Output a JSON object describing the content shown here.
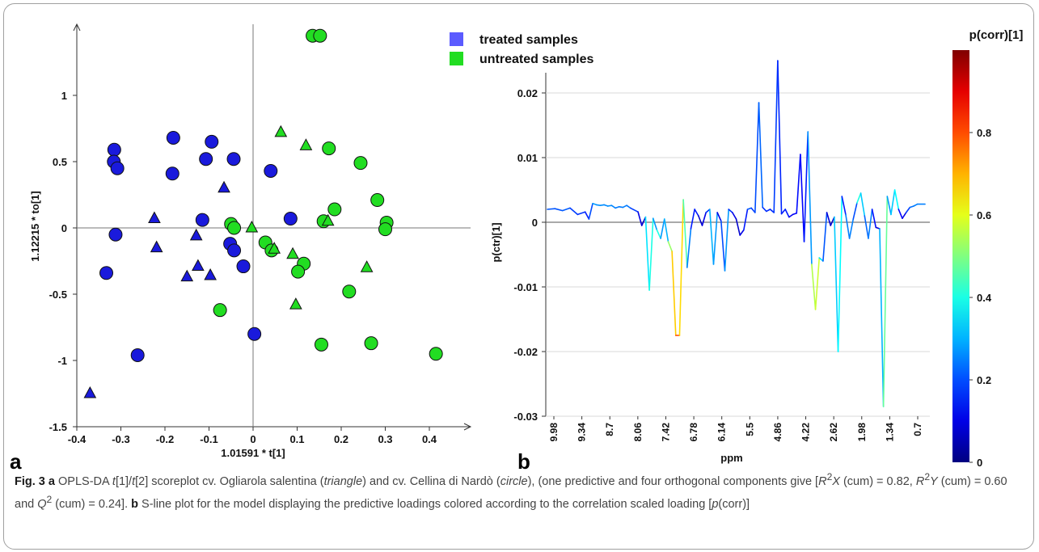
{
  "figure": {
    "panel_a_letter": "a",
    "panel_b_letter": "b",
    "caption": {
      "fig_label": "Fig. 3",
      "a_letter": "a",
      "t1": "OPLS-DA",
      "t2": "t",
      "t3": "[1]/",
      "t4": "t",
      "t5": "[2] scoreplot cv. Ogliarola salentina (",
      "t6": "triangle",
      "t7": ") and cv. Cellina di Nardò (",
      "t8": "circle",
      "t9": "), (one predictive and four orthogonal components give [",
      "t10": "R",
      "t11": "2",
      "t12": "X",
      "t13": " (cum) = 0.82, ",
      "t14": "R",
      "t15": "2",
      "t16": "Y",
      "t17": " (cum) = 0.60 and ",
      "t18": "Q",
      "t19": "2",
      "t20": " (cum) = 0.24].",
      "b_letter": "b",
      "t21": " S-line plot for the model displaying the predictive loadings colored according to the correlation scaled loading [",
      "t22": "p",
      "t23": "(corr)]"
    }
  },
  "chart_data": [
    {
      "type": "scatter",
      "xlabel": "1.01591 * t[1]",
      "ylabel": "1.12215 * to[1]",
      "xlim": [
        -0.4,
        0.44
      ],
      "ylim": [
        -1.5,
        1.45
      ],
      "xticks": [
        "-0.4",
        "-0.3",
        "-0.2",
        "-0.1",
        "0",
        "0.1",
        "0.2",
        "0.3",
        "0.4"
      ],
      "yticks": [
        "-1.5",
        "-1",
        "-0.5",
        "0",
        "0.5",
        "1"
      ],
      "xtick_values": [
        -0.4,
        -0.3,
        -0.2,
        -0.1,
        0,
        0.1,
        0.2,
        0.3,
        0.4
      ],
      "ytick_values": [
        -1.5,
        -1,
        -0.5,
        0,
        0.5,
        1
      ],
      "legend": [
        {
          "label": "treated samples",
          "color": "#5b5bff"
        },
        {
          "label": "untreated samples",
          "color": "#22dd22"
        }
      ],
      "series": [
        {
          "name": "treated samples",
          "color": "#1a1adc",
          "points": {
            "circle": [
              [
                -0.315,
                0.59
              ],
              [
                -0.316,
                0.5
              ],
              [
                -0.308,
                0.45
              ],
              [
                -0.312,
                -0.05
              ],
              [
                -0.333,
                -0.34
              ],
              [
                -0.181,
                0.68
              ],
              [
                -0.183,
                0.41
              ],
              [
                -0.107,
                0.52
              ],
              [
                -0.094,
                0.65
              ],
              [
                -0.044,
                0.52
              ],
              [
                -0.115,
                0.06
              ],
              [
                -0.052,
                -0.12
              ],
              [
                -0.043,
                -0.17
              ],
              [
                -0.022,
                -0.29
              ],
              [
                0.04,
                0.43
              ],
              [
                0.085,
                0.07
              ],
              [
                0.003,
                -0.8
              ],
              [
                -0.262,
                -0.96
              ]
            ],
            "triangle": [
              [
                -0.224,
                0.07
              ],
              [
                -0.219,
                -0.15
              ],
              [
                -0.129,
                -0.06
              ],
              [
                -0.125,
                -0.29
              ],
              [
                -0.15,
                -0.37
              ],
              [
                -0.097,
                -0.36
              ],
              [
                -0.066,
                0.3
              ],
              [
                -0.37,
                -1.25
              ]
            ]
          }
        },
        {
          "name": "untreated samples",
          "color": "#22dd22",
          "points": {
            "circle": [
              [
                0.135,
                1.45
              ],
              [
                0.152,
                1.45
              ],
              [
                0.172,
                0.6
              ],
              [
                0.244,
                0.49
              ],
              [
                0.282,
                0.21
              ],
              [
                0.185,
                0.14
              ],
              [
                0.303,
                0.04
              ],
              [
                0.3,
                -0.01
              ],
              [
                0.16,
                0.05
              ],
              [
                -0.05,
                0.03
              ],
              [
                -0.043,
                0.0
              ],
              [
                0.028,
                -0.11
              ],
              [
                0.042,
                -0.17
              ],
              [
                0.115,
                -0.27
              ],
              [
                0.102,
                -0.33
              ],
              [
                0.218,
                -0.48
              ],
              [
                -0.075,
                -0.62
              ],
              [
                0.155,
                -0.88
              ],
              [
                0.268,
                -0.87
              ],
              [
                0.415,
                -0.95
              ]
            ],
            "triangle": [
              [
                0.063,
                0.72
              ],
              [
                0.12,
                0.62
              ],
              [
                0.17,
                0.05
              ],
              [
                -0.003,
                0.0
              ],
              [
                0.048,
                -0.16
              ],
              [
                0.09,
                -0.2
              ],
              [
                0.258,
                -0.3
              ],
              [
                0.097,
                -0.58
              ]
            ]
          }
        }
      ]
    },
    {
      "type": "line",
      "ylabel": "p(ctr)[1]",
      "xlabel": "ppm",
      "xticks": [
        "9.98",
        "9.34",
        "8.7",
        "8.06",
        "7.42",
        "6.78",
        "6.14",
        "5.5",
        "4.86",
        "4.22",
        "2.62",
        "1.98",
        "1.34",
        "0.7"
      ],
      "yticks": [
        "0.02",
        "0.01",
        "0",
        "-0.01",
        "-0.02",
        "-0.03"
      ],
      "ytick_values": [
        0.02,
        0.01,
        0,
        -0.01,
        -0.02,
        -0.03
      ],
      "ylim": [
        -0.03,
        0.023
      ],
      "x_index_range": [
        0,
        100
      ],
      "x": [
        0,
        2,
        4,
        6,
        8,
        10,
        11,
        12,
        13,
        14,
        15,
        16,
        17,
        18,
        19,
        20,
        21,
        22,
        24,
        25,
        26,
        27,
        28,
        29,
        30,
        31,
        32,
        33,
        34,
        35,
        36,
        37,
        38,
        39,
        40,
        41,
        42,
        43,
        44,
        45,
        46,
        47,
        48,
        49,
        50,
        51,
        52,
        53,
        54,
        55,
        56,
        57,
        58,
        59,
        60,
        61,
        62,
        63,
        64,
        65,
        66,
        67,
        68,
        69,
        70,
        71,
        72,
        73,
        74,
        75,
        76,
        77,
        78,
        79,
        80,
        81,
        82,
        83,
        84,
        85,
        86,
        87,
        88,
        89,
        90,
        91,
        92,
        93,
        94,
        95,
        96,
        97,
        98,
        100
      ],
      "y": [
        0.002,
        0.0021,
        0.0018,
        0.0022,
        0.0012,
        0.0016,
        0.0005,
        0.0029,
        0.0027,
        0.0026,
        0.0027,
        0.0025,
        0.0026,
        0.0022,
        0.0024,
        0.0023,
        0.0026,
        0.0022,
        0.0016,
        -0.0005,
        0.0008,
        -0.0105,
        0.0006,
        -0.0012,
        -0.0025,
        0.0005,
        -0.003,
        -0.0045,
        -0.0175,
        -0.0175,
        0.0035,
        -0.007,
        -0.001,
        0.002,
        0.001,
        -0.0005,
        0.0015,
        0.002,
        -0.0065,
        0.0015,
        0.0002,
        -0.0075,
        0.002,
        0.0015,
        0.0005,
        -0.002,
        -0.0012,
        0.002,
        0.0022,
        0.0015,
        0.0185,
        0.0023,
        0.0017,
        0.002,
        0.0015,
        0.025,
        0.0013,
        0.002,
        0.0008,
        0.0012,
        0.0014,
        0.0105,
        -0.003,
        0.014,
        -0.0065,
        -0.0135,
        -0.0055,
        -0.006,
        0.0015,
        -0.0005,
        0.0008,
        -0.02,
        0.004,
        0.0012,
        -0.0025,
        0.0005,
        0.003,
        0.0045,
        0.001,
        -0.0025,
        0.002,
        -0.0008,
        -0.001,
        -0.0285,
        0.004,
        0.0012,
        0.005,
        0.002,
        0.0006,
        0.0015,
        0.0023,
        0.0025,
        0.0028,
        0.0028
      ],
      "corr": [
        0.22,
        0.2,
        0.21,
        0.22,
        0.15,
        0.2,
        0.1,
        0.3,
        0.26,
        0.27,
        0.26,
        0.26,
        0.27,
        0.24,
        0.25,
        0.24,
        0.26,
        0.22,
        0.15,
        0.05,
        0.1,
        0.6,
        0.2,
        0.35,
        0.45,
        0.1,
        0.5,
        0.55,
        0.8,
        0.82,
        0.5,
        0.4,
        0.1,
        0.2,
        0.1,
        0.05,
        0.15,
        0.2,
        0.4,
        0.15,
        0.05,
        0.35,
        0.2,
        0.15,
        0.05,
        0.1,
        0.1,
        0.2,
        0.22,
        0.15,
        0.25,
        0.2,
        0.15,
        0.18,
        0.15,
        0.22,
        0.1,
        0.2,
        0.1,
        0.12,
        0.12,
        0.15,
        0.1,
        0.2,
        0.35,
        0.75,
        0.4,
        0.3,
        0.12,
        0.05,
        0.1,
        0.55,
        0.2,
        0.1,
        0.4,
        0.1,
        0.3,
        0.5,
        0.15,
        0.3,
        0.2,
        0.08,
        0.1,
        0.5,
        0.45,
        0.1,
        0.55,
        0.2,
        0.05,
        0.15,
        0.22,
        0.25,
        0.25,
        0.25
      ],
      "colorbar": {
        "title": "p(corr)[1]",
        "ticks": [
          "0.8",
          "0.6",
          "0.4",
          "0.2",
          "0"
        ],
        "tick_values": [
          0.8,
          0.6,
          0.4,
          0.2,
          0
        ],
        "range": [
          0,
          1
        ]
      }
    }
  ]
}
